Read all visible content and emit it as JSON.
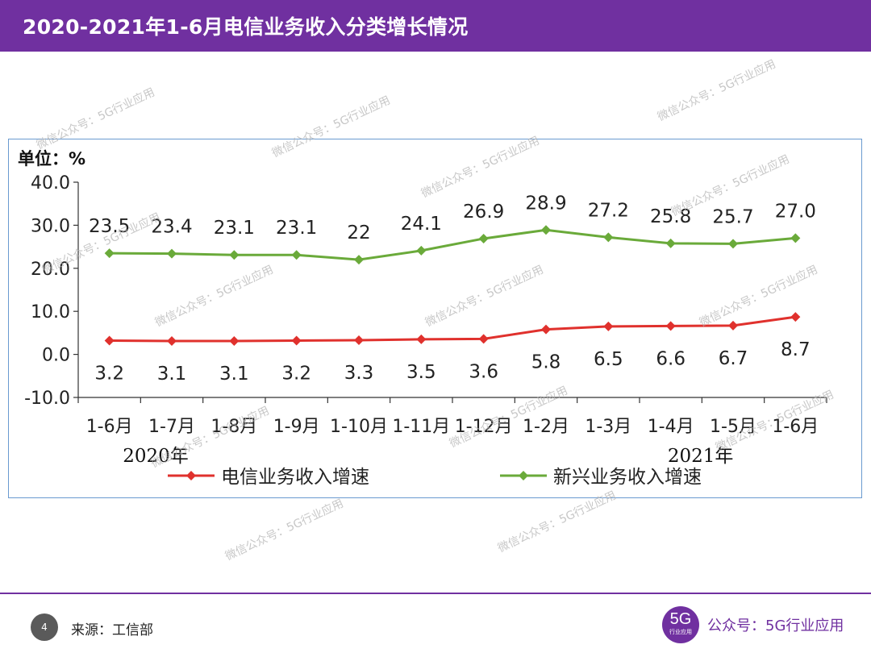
{
  "header": {
    "title": "2020-2021年1-6月电信业务收入分类增长情况"
  },
  "chart_data": {
    "type": "line",
    "unit_label": "单位：%",
    "ylim": [
      -10,
      40
    ],
    "yticks": [
      "40.0",
      "30.0",
      "20.0",
      "10.0",
      "0.0",
      "-10.0"
    ],
    "categories": [
      "1-6月",
      "1-7月",
      "1-8月",
      "1-9月",
      "1-10月",
      "1-11月",
      "1-12月",
      "1-2月",
      "1-3月",
      "1-4月",
      "1-5月",
      "1-6月"
    ],
    "year_groups": [
      "2020年",
      "2021年"
    ],
    "series": [
      {
        "name": "电信业务收入增速",
        "color": "#e0312d",
        "marker": "diamond",
        "values": [
          3.2,
          3.1,
          3.1,
          3.2,
          3.3,
          3.5,
          3.6,
          5.8,
          6.5,
          6.6,
          6.7,
          8.7
        ],
        "labels": [
          "3.2",
          "3.1",
          "3.1",
          "3.2",
          "3.3",
          "3.5",
          "3.6",
          "5.8",
          "6.5",
          "6.6",
          "6.7",
          "8.7"
        ]
      },
      {
        "name": "新兴业务收入增速",
        "color": "#6aaa3a",
        "marker": "diamond",
        "values": [
          23.5,
          23.4,
          23.1,
          23.1,
          22,
          24.1,
          26.9,
          28.9,
          27.2,
          25.8,
          25.7,
          27.0
        ],
        "labels": [
          "23.5",
          "23.4",
          "23.1",
          "23.1",
          "22",
          "24.1",
          "26.9",
          "28.9",
          "27.2",
          "25.8",
          "25.7",
          "27.0"
        ]
      }
    ],
    "legend_position": "bottom",
    "grid": false
  },
  "watermark": {
    "text": "微信公众号：5G行业应用"
  },
  "footer": {
    "page_number": "4",
    "source": "来源：工信部",
    "logo_text": "5G",
    "logo_subtext": "行业应用",
    "brand": "公众号：5G行业应用"
  }
}
